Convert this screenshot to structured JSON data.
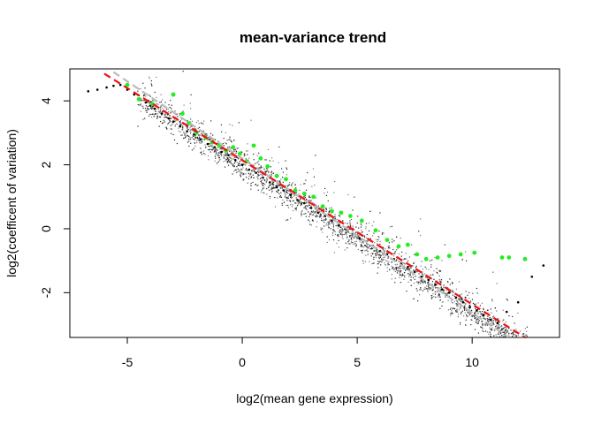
{
  "chart_data": {
    "type": "scatter",
    "title": "mean-variance trend",
    "xlabel": "log2(mean gene expression)",
    "ylabel": "log2(coefficent of variation)",
    "xlim": [
      -7.5,
      13.8
    ],
    "ylim": [
      -3.4,
      5.0
    ],
    "xticks": [
      -5,
      0,
      5,
      10
    ],
    "yticks": [
      -2,
      0,
      2,
      4
    ],
    "grid": false,
    "series": [
      {
        "kind": "points",
        "color": "#000000",
        "note_points": "dense cloud of gene points following the trend y ≈ 2.0 − 0.46·x with spread ±0.35",
        "x": [
          -6.7,
          -6.3,
          -5.9,
          -5.6,
          -5.3,
          -5.0,
          -4.7,
          -4.5,
          -4.2,
          -4.0,
          -3.8,
          -3.5,
          -3.2,
          -3.0,
          -2.7,
          -2.4,
          -2.1,
          -1.8,
          -1.5,
          -1.2,
          -0.9,
          -0.6,
          -0.3,
          0.0,
          0.3,
          0.6,
          0.9,
          1.2,
          1.5,
          1.8,
          2.1,
          2.4,
          2.7,
          3.0,
          3.3,
          3.6,
          3.9,
          4.2,
          4.5,
          4.8,
          5.1,
          5.4,
          5.7,
          6.0,
          6.3,
          6.6,
          6.9,
          7.2,
          7.5,
          7.8,
          8.1,
          8.4,
          8.7,
          9.0,
          9.3,
          9.6,
          9.9,
          10.2,
          10.5,
          10.8,
          11.1,
          11.5,
          12.0,
          12.6,
          13.1
        ],
        "y": [
          4.3,
          4.35,
          4.42,
          4.47,
          4.5,
          4.35,
          4.2,
          4.05,
          3.95,
          3.85,
          3.75,
          3.6,
          3.45,
          3.35,
          3.2,
          3.05,
          2.95,
          2.8,
          2.65,
          2.55,
          2.4,
          2.3,
          2.15,
          2.0,
          1.85,
          1.75,
          1.6,
          1.45,
          1.3,
          1.2,
          1.05,
          0.9,
          0.8,
          0.65,
          0.5,
          0.4,
          0.25,
          0.1,
          0.0,
          -0.15,
          -0.3,
          -0.4,
          -0.55,
          -0.7,
          -0.8,
          -0.95,
          -1.1,
          -1.2,
          -1.35,
          -1.5,
          -1.6,
          -1.75,
          -1.9,
          -2.0,
          -2.15,
          -2.3,
          -2.45,
          -2.55,
          -2.7,
          -2.85,
          -2.95,
          -2.6,
          -2.3,
          -1.5,
          -1.15
        ]
      },
      {
        "kind": "points",
        "color": "#22ee22",
        "note_points": "highlighted genes",
        "x": [
          -5.0,
          -4.5,
          -3.9,
          -3.0,
          -2.6,
          -2.3,
          -2.0,
          -1.6,
          -1.3,
          -1.0,
          -0.7,
          -0.4,
          -0.1,
          0.2,
          0.5,
          0.8,
          1.1,
          1.5,
          1.9,
          2.3,
          2.7,
          3.1,
          3.5,
          3.9,
          4.3,
          4.7,
          5.2,
          5.8,
          6.3,
          6.8,
          7.2,
          7.6,
          8.0,
          8.5,
          9.0,
          9.5,
          10.1,
          11.3,
          11.6,
          12.3
        ],
        "y": [
          4.5,
          4.05,
          3.9,
          4.2,
          3.6,
          3.3,
          3.0,
          2.85,
          2.7,
          2.6,
          2.45,
          2.55,
          2.35,
          2.1,
          2.6,
          2.2,
          1.95,
          1.65,
          1.55,
          1.2,
          1.1,
          1.0,
          0.7,
          0.55,
          0.5,
          0.4,
          0.25,
          -0.05,
          -0.35,
          -0.55,
          -0.5,
          -0.8,
          -0.95,
          -0.9,
          -0.85,
          -0.8,
          -0.75,
          -0.9,
          -0.9,
          -0.95
        ]
      }
    ],
    "trend_lines": [
      {
        "name": "",
        "color": "#ee1111",
        "style": "dashed",
        "x": [
          -6.0,
          12.3
        ],
        "y": [
          4.85,
          -3.4
        ]
      },
      {
        "name": "",
        "color": "#bbbbbb",
        "style": "dashed",
        "x": [
          -5.6,
          11.6
        ],
        "y": [
          4.9,
          -3.4
        ]
      }
    ]
  }
}
